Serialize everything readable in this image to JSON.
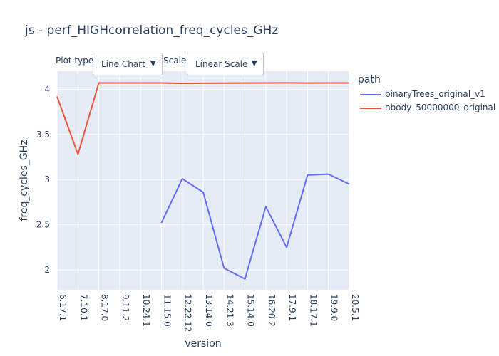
{
  "title": "js - perf_HIGHcorrelation_freq_cycles_GHz",
  "controls": {
    "plot_type_label": "Plot type:",
    "plot_type_value": "Line Chart",
    "scale_label": "Scale:",
    "scale_value": "Linear Scale",
    "arrow_glyph": "▼"
  },
  "legend": {
    "title": "path",
    "items": [
      {
        "name": "binaryTrees_original_v1",
        "color": "#636efa"
      },
      {
        "name": "nbody_50000000_original",
        "color": "#ef553b"
      }
    ]
  },
  "chart_data": {
    "type": "line",
    "title": "js - perf_HIGHcorrelation_freq_cycles_GHz",
    "xlabel": "version",
    "ylabel": "freq_cycles_GHz",
    "categories": [
      "6.17.1",
      "7.10.1",
      "8.17.0",
      "9.11.2",
      "10.24.1",
      "11.15.0",
      "12.22.12",
      "13.14.0",
      "14.21.3",
      "15.14.0",
      "16.20.2",
      "17.9.1",
      "18.17.1",
      "19.9.0",
      "20.5.1"
    ],
    "ylim": [
      1.78,
      4.2
    ],
    "yticks": [
      2,
      2.5,
      3,
      3.5,
      4
    ],
    "ytick_labels": [
      "2",
      "2.5",
      "3",
      "3.5",
      "4"
    ],
    "grid": true,
    "legend_position": "right",
    "series": [
      {
        "name": "binaryTrees_original_v1",
        "color": "#636efa",
        "values": [
          null,
          null,
          null,
          null,
          null,
          2.52,
          3.01,
          2.86,
          2.02,
          1.9,
          2.7,
          2.25,
          3.05,
          3.06,
          2.95
        ]
      },
      {
        "name": "nbody_50000000_original",
        "color": "#ef553b",
        "values": [
          3.92,
          3.28,
          4.07,
          4.07,
          4.07,
          4.07,
          4.065,
          4.067,
          4.068,
          4.069,
          4.07,
          4.071,
          4.069,
          4.07,
          4.07
        ]
      }
    ]
  }
}
